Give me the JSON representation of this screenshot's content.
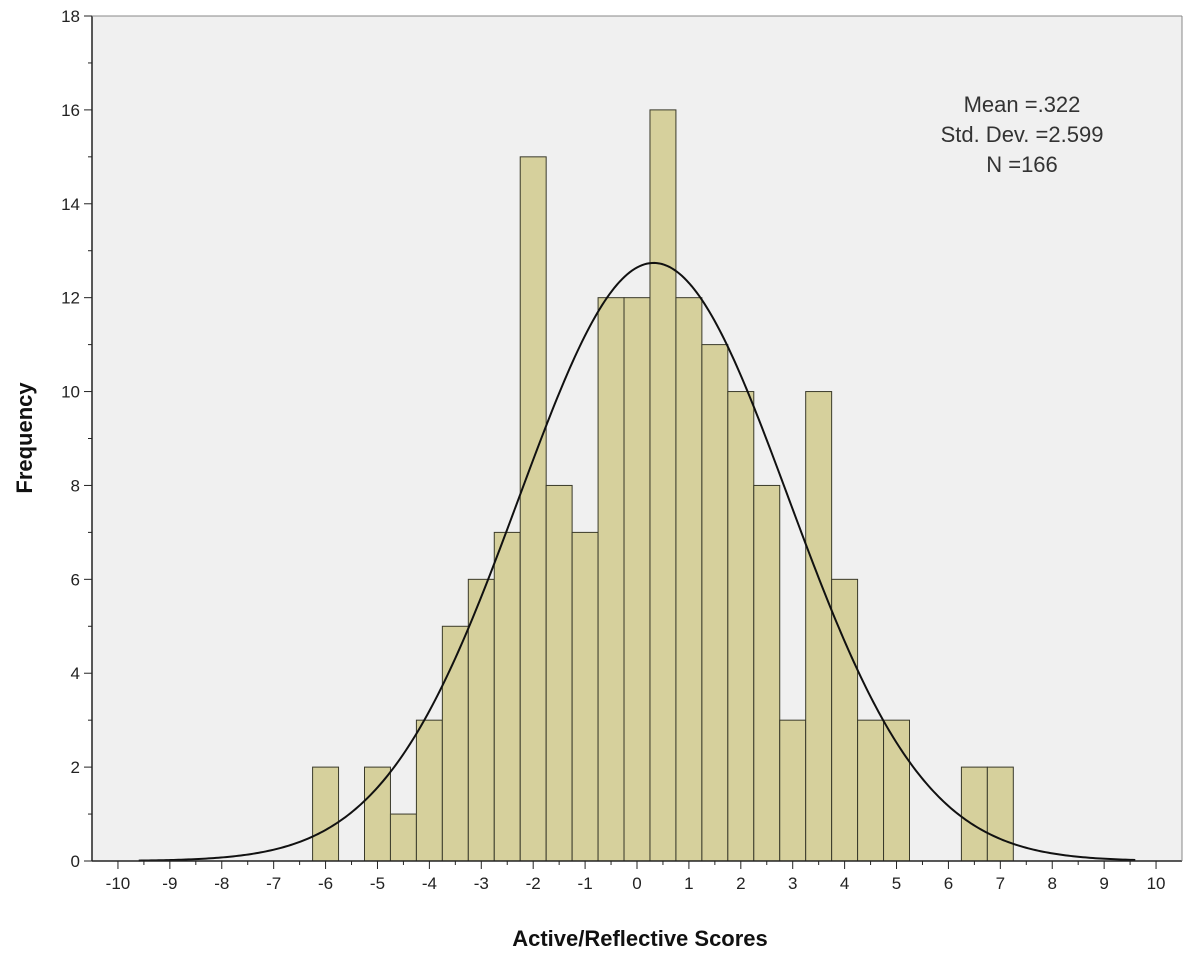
{
  "chart_data": {
    "type": "bar",
    "subtype": "histogram",
    "xlabel": "Active/Reflective Scores",
    "ylabel": "Frequency",
    "xlim": [
      -10.5,
      10.5
    ],
    "ylim": [
      0,
      18
    ],
    "x_ticks": [
      -10,
      -9,
      -8,
      -7,
      -6,
      -5,
      -4,
      -3,
      -2,
      -1,
      0,
      1,
      2,
      3,
      4,
      5,
      6,
      7,
      8,
      9,
      10
    ],
    "y_ticks": [
      0,
      2,
      4,
      6,
      8,
      10,
      12,
      14,
      16,
      18
    ],
    "bin_width": 0.5,
    "bins": [
      {
        "start": -6.25,
        "end": -5.75,
        "count": 2
      },
      {
        "start": -5.25,
        "end": -4.75,
        "count": 2
      },
      {
        "start": -4.75,
        "end": -4.25,
        "count": 1
      },
      {
        "start": -4.25,
        "end": -3.75,
        "count": 3
      },
      {
        "start": -3.75,
        "end": -3.25,
        "count": 5
      },
      {
        "start": -3.25,
        "end": -2.75,
        "count": 6
      },
      {
        "start": -2.75,
        "end": -2.25,
        "count": 7
      },
      {
        "start": -2.25,
        "end": -1.75,
        "count": 15
      },
      {
        "start": -1.75,
        "end": -1.25,
        "count": 8
      },
      {
        "start": -1.25,
        "end": -0.75,
        "count": 7
      },
      {
        "start": -0.75,
        "end": -0.25,
        "count": 12
      },
      {
        "start": -0.25,
        "end": 0.25,
        "count": 12
      },
      {
        "start": 0.25,
        "end": 0.75,
        "count": 16
      },
      {
        "start": 0.75,
        "end": 1.25,
        "count": 12
      },
      {
        "start": 1.25,
        "end": 1.75,
        "count": 11
      },
      {
        "start": 1.75,
        "end": 2.25,
        "count": 10
      },
      {
        "start": 2.25,
        "end": 2.75,
        "count": 8
      },
      {
        "start": 2.75,
        "end": 3.25,
        "count": 3
      },
      {
        "start": 3.25,
        "end": 3.75,
        "count": 10
      },
      {
        "start": 3.75,
        "end": 4.25,
        "count": 6
      },
      {
        "start": 4.25,
        "end": 4.75,
        "count": 3
      },
      {
        "start": 4.75,
        "end": 5.25,
        "count": 3
      },
      {
        "start": 6.25,
        "end": 6.75,
        "count": 2
      },
      {
        "start": 6.75,
        "end": 7.25,
        "count": 2
      }
    ],
    "normal_curve": {
      "mean": 0.322,
      "std": 2.599,
      "n": 166
    },
    "stats_lines": [
      "Mean =.322",
      "Std. Dev. =2.599",
      "N =166"
    ],
    "grid": false,
    "colors": {
      "bar_fill": "#d6d09c",
      "bar_stroke": "#3a3a2a",
      "plot_background": "#f0f0f0",
      "curve": "#111111",
      "axis": "#222222"
    }
  }
}
